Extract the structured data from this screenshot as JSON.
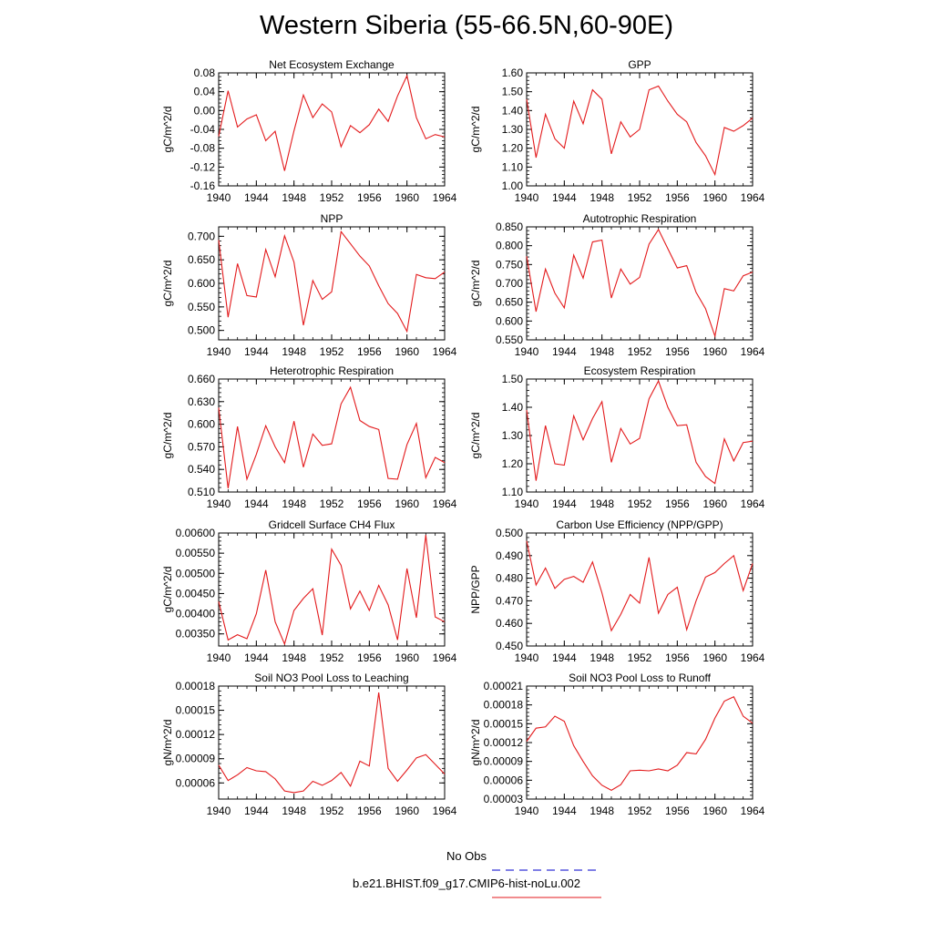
{
  "title": "Western Siberia (55-66.5N,60-90E)",
  "legend": {
    "entries": [
      {
        "label": "No Obs",
        "color": "#0000cc",
        "dash": true
      },
      {
        "label": "b.e21.BHIST.f09_g17.CMIP6-hist-noLu.002",
        "color": "#e31a1c",
        "dash": false
      }
    ]
  },
  "x_ticks": [
    "1940",
    "1944",
    "1948",
    "1952",
    "1956",
    "1960",
    "1964"
  ],
  "chart_data": [
    {
      "type": "line",
      "title": "Net Ecosystem Exchange",
      "ylabel": "gC/m^2/d",
      "xlim": [
        1940,
        1964
      ],
      "ylim": [
        -0.16,
        0.08
      ],
      "ytick_labels": [
        "-0.16",
        "-0.12",
        "-0.08",
        "-0.04",
        "0.00",
        "0.04",
        "0.08"
      ],
      "x": [
        1940,
        1941,
        1942,
        1943,
        1944,
        1945,
        1946,
        1947,
        1948,
        1949,
        1950,
        1951,
        1952,
        1953,
        1954,
        1955,
        1956,
        1957,
        1958,
        1959,
        1960,
        1961,
        1962,
        1963,
        1964
      ],
      "series": [
        {
          "values": [
            -0.055,
            0.042,
            -0.035,
            -0.018,
            -0.009,
            -0.064,
            -0.044,
            -0.128,
            -0.043,
            0.033,
            -0.015,
            0.014,
            -0.003,
            -0.077,
            -0.032,
            -0.047,
            -0.03,
            0.003,
            -0.023,
            0.031,
            0.074,
            -0.015,
            -0.06,
            -0.051,
            -0.056
          ]
        }
      ]
    },
    {
      "type": "line",
      "title": "GPP",
      "ylabel": "gC/m^2/d",
      "xlim": [
        1940,
        1964
      ],
      "ylim": [
        1.0,
        1.6
      ],
      "ytick_labels": [
        "1.00",
        "1.10",
        "1.20",
        "1.30",
        "1.40",
        "1.50",
        "1.60"
      ],
      "x": [
        1940,
        1941,
        1942,
        1943,
        1944,
        1945,
        1946,
        1947,
        1948,
        1949,
        1950,
        1951,
        1952,
        1953,
        1954,
        1955,
        1956,
        1957,
        1958,
        1959,
        1960,
        1961,
        1962,
        1963,
        1964
      ],
      "series": [
        {
          "values": [
            1.46,
            1.15,
            1.38,
            1.25,
            1.2,
            1.45,
            1.33,
            1.51,
            1.46,
            1.17,
            1.34,
            1.26,
            1.3,
            1.51,
            1.53,
            1.45,
            1.38,
            1.34,
            1.23,
            1.16,
            1.06,
            1.31,
            1.29,
            1.32,
            1.36
          ]
        }
      ]
    },
    {
      "type": "line",
      "title": "NPP",
      "ylabel": "gC/m^2/d",
      "xlim": [
        1940,
        1964
      ],
      "ylim": [
        0.48,
        0.72
      ],
      "ytick_labels": [
        "0.500",
        "0.550",
        "0.600",
        "0.650",
        "0.700"
      ],
      "ytick_values": [
        0.5,
        0.55,
        0.6,
        0.65,
        0.7
      ],
      "x": [
        1940,
        1941,
        1942,
        1943,
        1944,
        1945,
        1946,
        1947,
        1948,
        1949,
        1950,
        1951,
        1952,
        1953,
        1954,
        1955,
        1956,
        1957,
        1958,
        1959,
        1960,
        1961,
        1962,
        1963,
        1964
      ],
      "series": [
        {
          "values": [
            0.692,
            0.528,
            0.642,
            0.574,
            0.571,
            0.672,
            0.614,
            0.701,
            0.645,
            0.511,
            0.606,
            0.566,
            0.582,
            0.71,
            0.684,
            0.658,
            0.637,
            0.595,
            0.557,
            0.536,
            0.498,
            0.619,
            0.612,
            0.61,
            0.624
          ]
        }
      ]
    },
    {
      "type": "line",
      "title": "Autotrophic Respiration",
      "ylabel": "gC/m^2/d",
      "xlim": [
        1940,
        1964
      ],
      "ylim": [
        0.55,
        0.85
      ],
      "ytick_labels": [
        "0.550",
        "0.600",
        "0.650",
        "0.700",
        "0.750",
        "0.800",
        "0.850"
      ],
      "x": [
        1940,
        1941,
        1942,
        1943,
        1944,
        1945,
        1946,
        1947,
        1948,
        1949,
        1950,
        1951,
        1952,
        1953,
        1954,
        1955,
        1956,
        1957,
        1958,
        1959,
        1960,
        1961,
        1962,
        1963,
        1964
      ],
      "series": [
        {
          "values": [
            0.772,
            0.625,
            0.738,
            0.674,
            0.635,
            0.775,
            0.714,
            0.81,
            0.815,
            0.661,
            0.738,
            0.698,
            0.716,
            0.804,
            0.843,
            0.792,
            0.741,
            0.747,
            0.676,
            0.633,
            0.56,
            0.686,
            0.68,
            0.72,
            0.73
          ]
        }
      ]
    },
    {
      "type": "line",
      "title": "Heterotrophic Respiration",
      "ylabel": "gC/m^2/d",
      "xlim": [
        1940,
        1964
      ],
      "ylim": [
        0.51,
        0.66
      ],
      "ytick_labels": [
        "0.510",
        "0.540",
        "0.570",
        "0.600",
        "0.630",
        "0.660"
      ],
      "x": [
        1940,
        1941,
        1942,
        1943,
        1944,
        1945,
        1946,
        1947,
        1948,
        1949,
        1950,
        1951,
        1952,
        1953,
        1954,
        1955,
        1956,
        1957,
        1958,
        1959,
        1960,
        1961,
        1962,
        1963,
        1964
      ],
      "series": [
        {
          "values": [
            0.622,
            0.515,
            0.597,
            0.527,
            0.56,
            0.598,
            0.57,
            0.549,
            0.604,
            0.543,
            0.587,
            0.572,
            0.574,
            0.627,
            0.649,
            0.605,
            0.597,
            0.593,
            0.528,
            0.527,
            0.573,
            0.601,
            0.529,
            0.556,
            0.549
          ]
        }
      ]
    },
    {
      "type": "line",
      "title": "Ecosystem Respiration",
      "ylabel": "gC/m^2/d",
      "xlim": [
        1940,
        1964
      ],
      "ylim": [
        1.1,
        1.5
      ],
      "ytick_labels": [
        "1.10",
        "1.20",
        "1.30",
        "1.40",
        "1.50"
      ],
      "x": [
        1940,
        1941,
        1942,
        1943,
        1944,
        1945,
        1946,
        1947,
        1948,
        1949,
        1950,
        1951,
        1952,
        1953,
        1954,
        1955,
        1956,
        1957,
        1958,
        1959,
        1960,
        1961,
        1962,
        1963,
        1964
      ],
      "series": [
        {
          "values": [
            1.39,
            1.14,
            1.335,
            1.2,
            1.195,
            1.37,
            1.285,
            1.36,
            1.42,
            1.205,
            1.325,
            1.27,
            1.29,
            1.43,
            1.493,
            1.4,
            1.335,
            1.338,
            1.205,
            1.155,
            1.13,
            1.288,
            1.21,
            1.275,
            1.28
          ]
        }
      ]
    },
    {
      "type": "line",
      "title": "Gridcell Surface CH4 Flux",
      "ylabel": "gC/m^2/d",
      "xlim": [
        1940,
        1964
      ],
      "ylim": [
        0.0032,
        0.006
      ],
      "ytick_labels": [
        "0.00350",
        "0.00400",
        "0.00450",
        "0.00500",
        "0.00550",
        "0.00600"
      ],
      "ytick_values": [
        0.0035,
        0.004,
        0.0045,
        0.005,
        0.0055,
        0.006
      ],
      "x": [
        1940,
        1941,
        1942,
        1943,
        1944,
        1945,
        1946,
        1947,
        1948,
        1949,
        1950,
        1951,
        1952,
        1953,
        1954,
        1955,
        1956,
        1957,
        1958,
        1959,
        1960,
        1961,
        1962,
        1963,
        1964
      ],
      "series": [
        {
          "values": [
            0.0043,
            0.00335,
            0.00348,
            0.00338,
            0.004,
            0.00508,
            0.0038,
            0.00325,
            0.00408,
            0.00438,
            0.00462,
            0.00347,
            0.0056,
            0.0052,
            0.00412,
            0.00456,
            0.00408,
            0.0047,
            0.00422,
            0.00335,
            0.00512,
            0.0039,
            0.00595,
            0.00392,
            0.0038
          ]
        }
      ]
    },
    {
      "type": "line",
      "title": "Carbon Use Efficiency (NPP/GPP)",
      "ylabel": "NPP/GPP",
      "xlim": [
        1940,
        1964
      ],
      "ylim": [
        0.45,
        0.5
      ],
      "ytick_labels": [
        "0.450",
        "0.460",
        "0.470",
        "0.480",
        "0.490",
        "0.500"
      ],
      "x": [
        1940,
        1941,
        1942,
        1943,
        1944,
        1945,
        1946,
        1947,
        1948,
        1949,
        1950,
        1951,
        1952,
        1953,
        1954,
        1955,
        1956,
        1957,
        1958,
        1959,
        1960,
        1961,
        1962,
        1963,
        1964
      ],
      "series": [
        {
          "values": [
            0.4965,
            0.477,
            0.4845,
            0.4755,
            0.4795,
            0.4808,
            0.4782,
            0.4872,
            0.4735,
            0.4568,
            0.464,
            0.4728,
            0.469,
            0.4892,
            0.4645,
            0.4728,
            0.476,
            0.4572,
            0.47,
            0.4805,
            0.4825,
            0.4865,
            0.49,
            0.4745,
            0.4865
          ]
        }
      ]
    },
    {
      "type": "line",
      "title": "Soil NO3 Pool Loss to Leaching",
      "ylabel": "gN/m^2/d",
      "xlim": [
        1940,
        1964
      ],
      "ylim": [
        4e-05,
        0.00018
      ],
      "ytick_labels": [
        "0.00006",
        "0.00009",
        "0.00012",
        "0.00015",
        "0.00018"
      ],
      "ytick_values": [
        6e-05,
        9e-05,
        0.00012,
        0.00015,
        0.00018
      ],
      "x": [
        1940,
        1941,
        1942,
        1943,
        1944,
        1945,
        1946,
        1947,
        1948,
        1949,
        1950,
        1951,
        1952,
        1953,
        1954,
        1955,
        1956,
        1957,
        1958,
        1959,
        1960,
        1961,
        1962,
        1963,
        1964
      ],
      "series": [
        {
          "values": [
            8.2e-05,
            6.3e-05,
            7e-05,
            7.9e-05,
            7.5e-05,
            7.4e-05,
            6.5e-05,
            5e-05,
            4.8e-05,
            5e-05,
            6.2e-05,
            5.7e-05,
            6.3e-05,
            7.3e-05,
            5.6e-05,
            8.7e-05,
            8.1e-05,
            0.000172,
            7.8e-05,
            6.2e-05,
            7.6e-05,
            9.1e-05,
            9.5e-05,
            8.3e-05,
            7.1e-05
          ]
        }
      ]
    },
    {
      "type": "line",
      "title": "Soil NO3 Pool Loss to Runoff",
      "ylabel": "gN/m^2/d",
      "xlim": [
        1940,
        1964
      ],
      "ylim": [
        3e-05,
        0.00021
      ],
      "ytick_labels": [
        "0.00003",
        "0.00006",
        "0.00009",
        "0.00012",
        "0.00015",
        "0.00018",
        "0.00021"
      ],
      "x": [
        1940,
        1941,
        1942,
        1943,
        1944,
        1945,
        1946,
        1947,
        1948,
        1949,
        1950,
        1951,
        1952,
        1953,
        1954,
        1955,
        1956,
        1957,
        1958,
        1959,
        1960,
        1961,
        1962,
        1963,
        1964
      ],
      "series": [
        {
          "values": [
            0.000122,
            0.000143,
            0.000145,
            0.000162,
            0.000154,
            0.000115,
            9e-05,
            6.7e-05,
            5.2e-05,
            4.4e-05,
            5.3e-05,
            7.5e-05,
            7.6e-05,
            7.5e-05,
            7.8e-05,
            7.5e-05,
            8.4e-05,
            0.000104,
            0.000102,
            0.000125,
            0.000159,
            0.000186,
            0.000193,
            0.000162,
            0.000151
          ]
        }
      ]
    }
  ]
}
